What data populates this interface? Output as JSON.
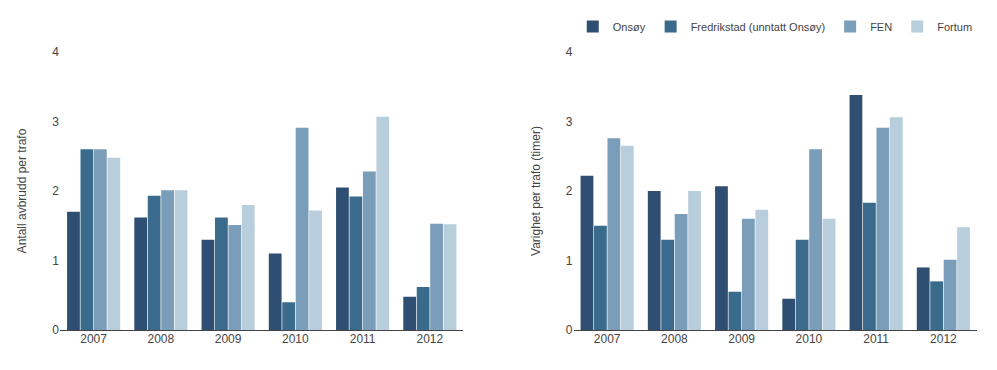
{
  "chart_data": [
    {
      "type": "bar",
      "categories": [
        "2007",
        "2008",
        "2009",
        "2010",
        "2011",
        "2012"
      ],
      "ylabel": "Antall avbrudd per trafo",
      "series": [
        {
          "name": "Onsøy",
          "color": "#2e4e72",
          "values": [
            1.7,
            1.62,
            1.3,
            1.1,
            2.05,
            0.48
          ]
        },
        {
          "name": "Fredrikstad (unntatt Onsøy)",
          "color": "#3a6b8c",
          "values": [
            2.6,
            1.93,
            1.62,
            0.4,
            1.92,
            0.62
          ]
        },
        {
          "name": "FEN",
          "color": "#7a9dba",
          "values": [
            2.6,
            2.01,
            1.51,
            2.91,
            2.28,
            1.53
          ]
        },
        {
          "name": "Fortum",
          "color": "#b8cedc",
          "values": [
            2.48,
            2.01,
            1.8,
            1.72,
            3.07,
            1.52
          ]
        }
      ],
      "ylim": [
        0,
        4
      ],
      "yticks": [
        0,
        1,
        2,
        3,
        4
      ],
      "grid": false
    },
    {
      "type": "bar",
      "categories": [
        "2007",
        "2008",
        "2009",
        "2010",
        "2011",
        "2012"
      ],
      "ylabel": "Varighet per trafo (timer)",
      "series": [
        {
          "name": "Onsøy",
          "color": "#2e4e72",
          "values": [
            2.22,
            2.0,
            2.07,
            0.45,
            3.38,
            0.9
          ]
        },
        {
          "name": "Fredrikstad (unntatt Onsøy)",
          "color": "#3a6b8c",
          "values": [
            1.5,
            1.3,
            0.55,
            1.3,
            1.83,
            0.7
          ]
        },
        {
          "name": "FEN",
          "color": "#7a9dba",
          "values": [
            2.76,
            1.67,
            1.6,
            2.6,
            2.91,
            1.01
          ]
        },
        {
          "name": "Fortum",
          "color": "#b8cedc",
          "values": [
            2.65,
            2.0,
            1.73,
            1.6,
            3.06,
            1.48
          ]
        }
      ],
      "ylim": [
        0,
        4
      ],
      "yticks": [
        0,
        1,
        2,
        3,
        4
      ],
      "grid": false,
      "legend": "top"
    }
  ]
}
